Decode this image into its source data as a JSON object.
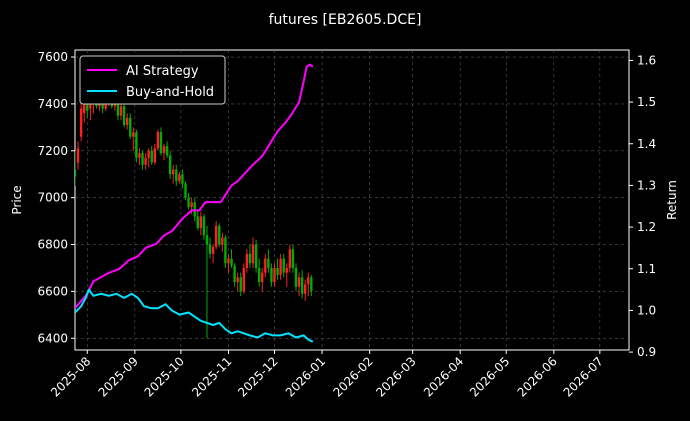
{
  "chart_data": {
    "type": "line",
    "title": "futures [EB2605.DCE]",
    "ylabel_left": "Price",
    "ylabel_right": "Return",
    "x_range": [
      "2025-07-24",
      "2026-07-20"
    ],
    "x_ticks": [
      "2025-08",
      "2025-09",
      "2025-10",
      "2025-11",
      "2025-12",
      "2026-01",
      "2026-02",
      "2026-03",
      "2026-04",
      "2026-05",
      "2026-06",
      "2026-07"
    ],
    "ylim_left": [
      6350,
      7630
    ],
    "yticks_left": [
      6400,
      6600,
      6800,
      7000,
      7200,
      7400,
      7600
    ],
    "ylim_right": [
      0.905,
      1.625
    ],
    "yticks_right": [
      0.9,
      1.0,
      1.1,
      1.2,
      1.3,
      1.4,
      1.5,
      1.6
    ],
    "grid": true,
    "legend_position": "top-left",
    "colors": {
      "up": "#ff2020",
      "down": "#00b000",
      "strategy": "#ff00ff",
      "buyhold": "#00e5ff",
      "grid": "#555555"
    },
    "series": [
      {
        "name": "AI Strategy",
        "color": "#ff00ff",
        "axis": "right",
        "points": [
          [
            "2025-07-24",
            1.005
          ],
          [
            "2025-08-01",
            1.04
          ],
          [
            "2025-08-05",
            1.07
          ],
          [
            "2025-08-10",
            1.08
          ],
          [
            "2025-08-15",
            1.09
          ],
          [
            "2025-08-22",
            1.1
          ],
          [
            "2025-08-28",
            1.12
          ],
          [
            "2025-09-03",
            1.13
          ],
          [
            "2025-09-08",
            1.15
          ],
          [
            "2025-09-15",
            1.16
          ],
          [
            "2025-09-20",
            1.18
          ],
          [
            "2025-09-25",
            1.19
          ],
          [
            "2025-10-02",
            1.22
          ],
          [
            "2025-10-08",
            1.24
          ],
          [
            "2025-10-13",
            1.24
          ],
          [
            "2025-10-17",
            1.26
          ],
          [
            "2025-10-22",
            1.26
          ],
          [
            "2025-10-27",
            1.26
          ],
          [
            "2025-11-03",
            1.3
          ],
          [
            "2025-11-07",
            1.31
          ],
          [
            "2025-11-12",
            1.33
          ],
          [
            "2025-11-17",
            1.35
          ],
          [
            "2025-11-23",
            1.37
          ],
          [
            "2025-11-28",
            1.4
          ],
          [
            "2025-12-03",
            1.43
          ],
          [
            "2025-12-08",
            1.45
          ],
          [
            "2025-12-12",
            1.47
          ],
          [
            "2025-12-17",
            1.5
          ],
          [
            "2025-12-20",
            1.55
          ],
          [
            "2025-12-22",
            1.585
          ],
          [
            "2025-12-24",
            1.59
          ],
          [
            "2025-12-26",
            1.585
          ]
        ]
      },
      {
        "name": "Buy-and-Hold",
        "color": "#00e5ff",
        "axis": "right",
        "points": [
          [
            "2025-07-24",
            0.995
          ],
          [
            "2025-07-28",
            1.01
          ],
          [
            "2025-07-31",
            1.03
          ],
          [
            "2025-08-02",
            1.05
          ],
          [
            "2025-08-05",
            1.035
          ],
          [
            "2025-08-10",
            1.04
          ],
          [
            "2025-08-15",
            1.035
          ],
          [
            "2025-08-20",
            1.04
          ],
          [
            "2025-08-25",
            1.03
          ],
          [
            "2025-08-30",
            1.04
          ],
          [
            "2025-09-03",
            1.03
          ],
          [
            "2025-09-07",
            1.01
          ],
          [
            "2025-09-12",
            1.005
          ],
          [
            "2025-09-16",
            1.005
          ],
          [
            "2025-09-21",
            1.015
          ],
          [
            "2025-09-25",
            1.0
          ],
          [
            "2025-09-30",
            0.99
          ],
          [
            "2025-10-06",
            0.995
          ],
          [
            "2025-10-10",
            0.985
          ],
          [
            "2025-10-14",
            0.975
          ],
          [
            "2025-10-18",
            0.97
          ],
          [
            "2025-10-22",
            0.965
          ],
          [
            "2025-10-26",
            0.97
          ],
          [
            "2025-10-30",
            0.955
          ],
          [
            "2025-11-03",
            0.945
          ],
          [
            "2025-11-07",
            0.95
          ],
          [
            "2025-11-11",
            0.945
          ],
          [
            "2025-11-15",
            0.94
          ],
          [
            "2025-11-20",
            0.935
          ],
          [
            "2025-11-25",
            0.945
          ],
          [
            "2025-11-30",
            0.94
          ],
          [
            "2025-12-05",
            0.94
          ],
          [
            "2025-12-10",
            0.945
          ],
          [
            "2025-12-15",
            0.935
          ],
          [
            "2025-12-20",
            0.94
          ],
          [
            "2025-12-23",
            0.93
          ],
          [
            "2025-12-26",
            0.925
          ]
        ]
      }
    ],
    "candles": [
      [
        "2025-07-24",
        7120,
        7200,
        7050,
        7090
      ],
      [
        "2025-07-26",
        7150,
        7240,
        7120,
        7210
      ],
      [
        "2025-07-28",
        7260,
        7400,
        7240,
        7380
      ],
      [
        "2025-07-30",
        7360,
        7450,
        7320,
        7400
      ],
      [
        "2025-08-01",
        7430,
        7460,
        7340,
        7370
      ],
      [
        "2025-08-03",
        7380,
        7420,
        7330,
        7400
      ],
      [
        "2025-08-05",
        7400,
        7470,
        7360,
        7440
      ],
      [
        "2025-08-07",
        7440,
        7460,
        7380,
        7390
      ],
      [
        "2025-08-09",
        7390,
        7430,
        7370,
        7420
      ],
      [
        "2025-08-11",
        7420,
        7440,
        7360,
        7380
      ],
      [
        "2025-08-13",
        7380,
        7430,
        7370,
        7410
      ],
      [
        "2025-08-15",
        7410,
        7460,
        7390,
        7440
      ],
      [
        "2025-08-17",
        7440,
        7460,
        7380,
        7390
      ],
      [
        "2025-08-19",
        7390,
        7420,
        7370,
        7400
      ],
      [
        "2025-08-21",
        7400,
        7420,
        7330,
        7350
      ],
      [
        "2025-08-23",
        7350,
        7400,
        7330,
        7390
      ],
      [
        "2025-08-25",
        7390,
        7400,
        7300,
        7310
      ],
      [
        "2025-08-27",
        7310,
        7360,
        7290,
        7340
      ],
      [
        "2025-08-29",
        7340,
        7360,
        7250,
        7260
      ],
      [
        "2025-08-31",
        7260,
        7300,
        7200,
        7280
      ],
      [
        "2025-09-02",
        7280,
        7290,
        7150,
        7170
      ],
      [
        "2025-09-04",
        7170,
        7210,
        7140,
        7190
      ],
      [
        "2025-09-06",
        7190,
        7200,
        7120,
        7140
      ],
      [
        "2025-09-08",
        7140,
        7190,
        7120,
        7170
      ],
      [
        "2025-09-10",
        7170,
        7210,
        7130,
        7200
      ],
      [
        "2025-09-12",
        7200,
        7220,
        7140,
        7150
      ],
      [
        "2025-09-14",
        7150,
        7230,
        7140,
        7210
      ],
      [
        "2025-09-16",
        7210,
        7290,
        7200,
        7280
      ],
      [
        "2025-09-18",
        7280,
        7300,
        7180,
        7190
      ],
      [
        "2025-09-20",
        7190,
        7230,
        7160,
        7220
      ],
      [
        "2025-09-22",
        7220,
        7240,
        7170,
        7180
      ],
      [
        "2025-09-24",
        7180,
        7200,
        7080,
        7100
      ],
      [
        "2025-09-26",
        7100,
        7140,
        7060,
        7120
      ],
      [
        "2025-09-28",
        7120,
        7140,
        7050,
        7070
      ],
      [
        "2025-09-30",
        7070,
        7110,
        7060,
        7100
      ],
      [
        "2025-10-02",
        7100,
        7120,
        7040,
        7060
      ],
      [
        "2025-10-04",
        7060,
        7070,
        6990,
        7000
      ],
      [
        "2025-10-06",
        7000,
        7020,
        6950,
        6960
      ],
      [
        "2025-10-08",
        6960,
        7000,
        6930,
        6980
      ],
      [
        "2025-10-10",
        6980,
        7000,
        6900,
        6920
      ],
      [
        "2025-10-12",
        6920,
        6950,
        6860,
        6870
      ],
      [
        "2025-10-14",
        6870,
        6940,
        6840,
        6920
      ],
      [
        "2025-10-16",
        6920,
        6930,
        6820,
        6840
      ],
      [
        "2025-10-18",
        6840,
        6880,
        6400,
        6800
      ],
      [
        "2025-10-20",
        6800,
        6830,
        6740,
        6760
      ],
      [
        "2025-10-22",
        6760,
        6800,
        6720,
        6790
      ],
      [
        "2025-10-24",
        6790,
        6900,
        6780,
        6880
      ],
      [
        "2025-10-26",
        6880,
        6890,
        6790,
        6800
      ],
      [
        "2025-10-28",
        6800,
        6850,
        6770,
        6830
      ],
      [
        "2025-10-30",
        6830,
        6840,
        6700,
        6720
      ],
      [
        "2025-11-01",
        6720,
        6760,
        6680,
        6740
      ],
      [
        "2025-11-03",
        6740,
        6780,
        6700,
        6710
      ],
      [
        "2025-11-05",
        6710,
        6720,
        6620,
        6640
      ],
      [
        "2025-11-07",
        6640,
        6680,
        6600,
        6660
      ],
      [
        "2025-11-09",
        6660,
        6680,
        6580,
        6600
      ],
      [
        "2025-11-11",
        6600,
        6720,
        6590,
        6700
      ],
      [
        "2025-11-13",
        6700,
        6780,
        6680,
        6760
      ],
      [
        "2025-11-15",
        6760,
        6800,
        6700,
        6720
      ],
      [
        "2025-11-17",
        6720,
        6830,
        6700,
        6800
      ],
      [
        "2025-11-19",
        6800,
        6820,
        6680,
        6700
      ],
      [
        "2025-11-21",
        6700,
        6740,
        6620,
        6640
      ],
      [
        "2025-11-23",
        6640,
        6700,
        6600,
        6680
      ],
      [
        "2025-11-25",
        6680,
        6760,
        6660,
        6740
      ],
      [
        "2025-11-27",
        6740,
        6780,
        6680,
        6700
      ],
      [
        "2025-11-29",
        6700,
        6720,
        6620,
        6640
      ],
      [
        "2025-12-01",
        6640,
        6720,
        6620,
        6700
      ],
      [
        "2025-12-03",
        6700,
        6740,
        6650,
        6670
      ],
      [
        "2025-12-05",
        6670,
        6760,
        6650,
        6740
      ],
      [
        "2025-12-07",
        6740,
        6760,
        6660,
        6680
      ],
      [
        "2025-12-09",
        6680,
        6720,
        6620,
        6700
      ],
      [
        "2025-12-11",
        6700,
        6800,
        6680,
        6780
      ],
      [
        "2025-12-13",
        6780,
        6800,
        6680,
        6700
      ],
      [
        "2025-12-15",
        6700,
        6720,
        6600,
        6620
      ],
      [
        "2025-12-17",
        6620,
        6680,
        6580,
        6660
      ],
      [
        "2025-12-19",
        6660,
        6690,
        6570,
        6590
      ],
      [
        "2025-12-21",
        6590,
        6650,
        6560,
        6630
      ],
      [
        "2025-12-23",
        6630,
        6680,
        6580,
        6660
      ],
      [
        "2025-12-25",
        6660,
        6670,
        6580,
        6600
      ]
    ]
  }
}
